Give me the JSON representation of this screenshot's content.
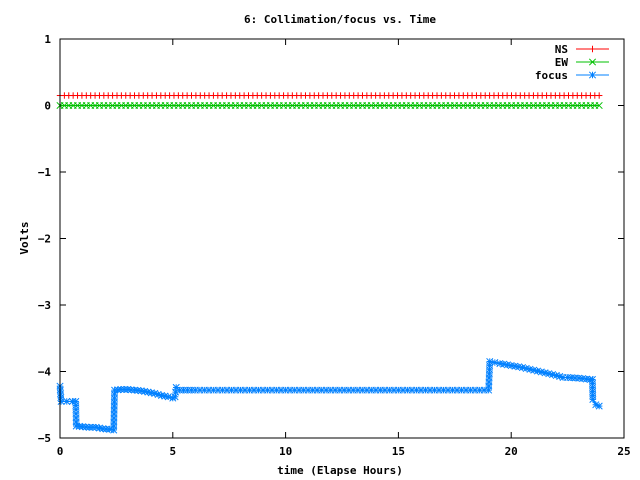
{
  "chart_data": {
    "type": "line",
    "title": "6: Collimation/focus vs. Time",
    "xlabel": "time (Elapse Hours)",
    "ylabel": "Volts",
    "xlim": [
      0,
      25
    ],
    "ylim": [
      -5,
      1
    ],
    "x_ticks": [
      "0",
      "5",
      "10",
      "15",
      "20",
      "25"
    ],
    "y_ticks": [
      "1",
      "0",
      "−1",
      "−2",
      "−3",
      "−4",
      "−5"
    ],
    "legend_position": "top-right",
    "grid": false,
    "series": [
      {
        "name": "NS",
        "color": "#ff0000",
        "marker": "plus",
        "points": [
          [
            0.0,
            0.15
          ],
          [
            23.9,
            0.15
          ]
        ]
      },
      {
        "name": "EW",
        "color": "#00c000",
        "marker": "cross",
        "points": [
          [
            0.0,
            0.0
          ],
          [
            23.9,
            0.0
          ]
        ]
      },
      {
        "name": "focus",
        "color": "#0080ff",
        "marker": "star",
        "points": [
          [
            0.0,
            -4.22
          ],
          [
            0.05,
            -4.45
          ],
          [
            0.3,
            -4.45
          ],
          [
            0.55,
            -4.45
          ],
          [
            0.7,
            -4.45
          ],
          [
            0.72,
            -4.82
          ],
          [
            1.0,
            -4.83
          ],
          [
            1.3,
            -4.84
          ],
          [
            1.6,
            -4.84
          ],
          [
            1.9,
            -4.86
          ],
          [
            2.2,
            -4.87
          ],
          [
            2.38,
            -4.88
          ],
          [
            2.42,
            -4.28
          ],
          [
            2.7,
            -4.27
          ],
          [
            3.0,
            -4.27
          ],
          [
            3.3,
            -4.28
          ],
          [
            3.6,
            -4.29
          ],
          [
            3.9,
            -4.31
          ],
          [
            4.2,
            -4.33
          ],
          [
            4.5,
            -4.36
          ],
          [
            4.8,
            -4.38
          ],
          [
            5.0,
            -4.4
          ],
          [
            5.1,
            -4.38
          ],
          [
            5.15,
            -4.24
          ],
          [
            5.3,
            -4.28
          ],
          [
            6.0,
            -4.28
          ],
          [
            7.0,
            -4.28
          ],
          [
            8.0,
            -4.28
          ],
          [
            9.0,
            -4.28
          ],
          [
            10.0,
            -4.28
          ],
          [
            11.0,
            -4.28
          ],
          [
            12.0,
            -4.28
          ],
          [
            13.0,
            -4.28
          ],
          [
            14.0,
            -4.28
          ],
          [
            15.0,
            -4.28
          ],
          [
            16.0,
            -4.28
          ],
          [
            17.0,
            -4.28
          ],
          [
            18.0,
            -4.28
          ],
          [
            19.0,
            -4.28
          ],
          [
            19.05,
            -3.85
          ],
          [
            19.5,
            -3.88
          ],
          [
            20.0,
            -3.91
          ],
          [
            20.5,
            -3.94
          ],
          [
            21.0,
            -3.98
          ],
          [
            21.5,
            -4.02
          ],
          [
            22.0,
            -4.06
          ],
          [
            22.3,
            -4.09
          ],
          [
            22.5,
            -4.09
          ],
          [
            23.0,
            -4.1
          ],
          [
            23.5,
            -4.12
          ],
          [
            23.6,
            -4.12
          ],
          [
            23.62,
            -4.42
          ],
          [
            23.75,
            -4.5
          ],
          [
            23.9,
            -4.52
          ]
        ]
      }
    ]
  }
}
